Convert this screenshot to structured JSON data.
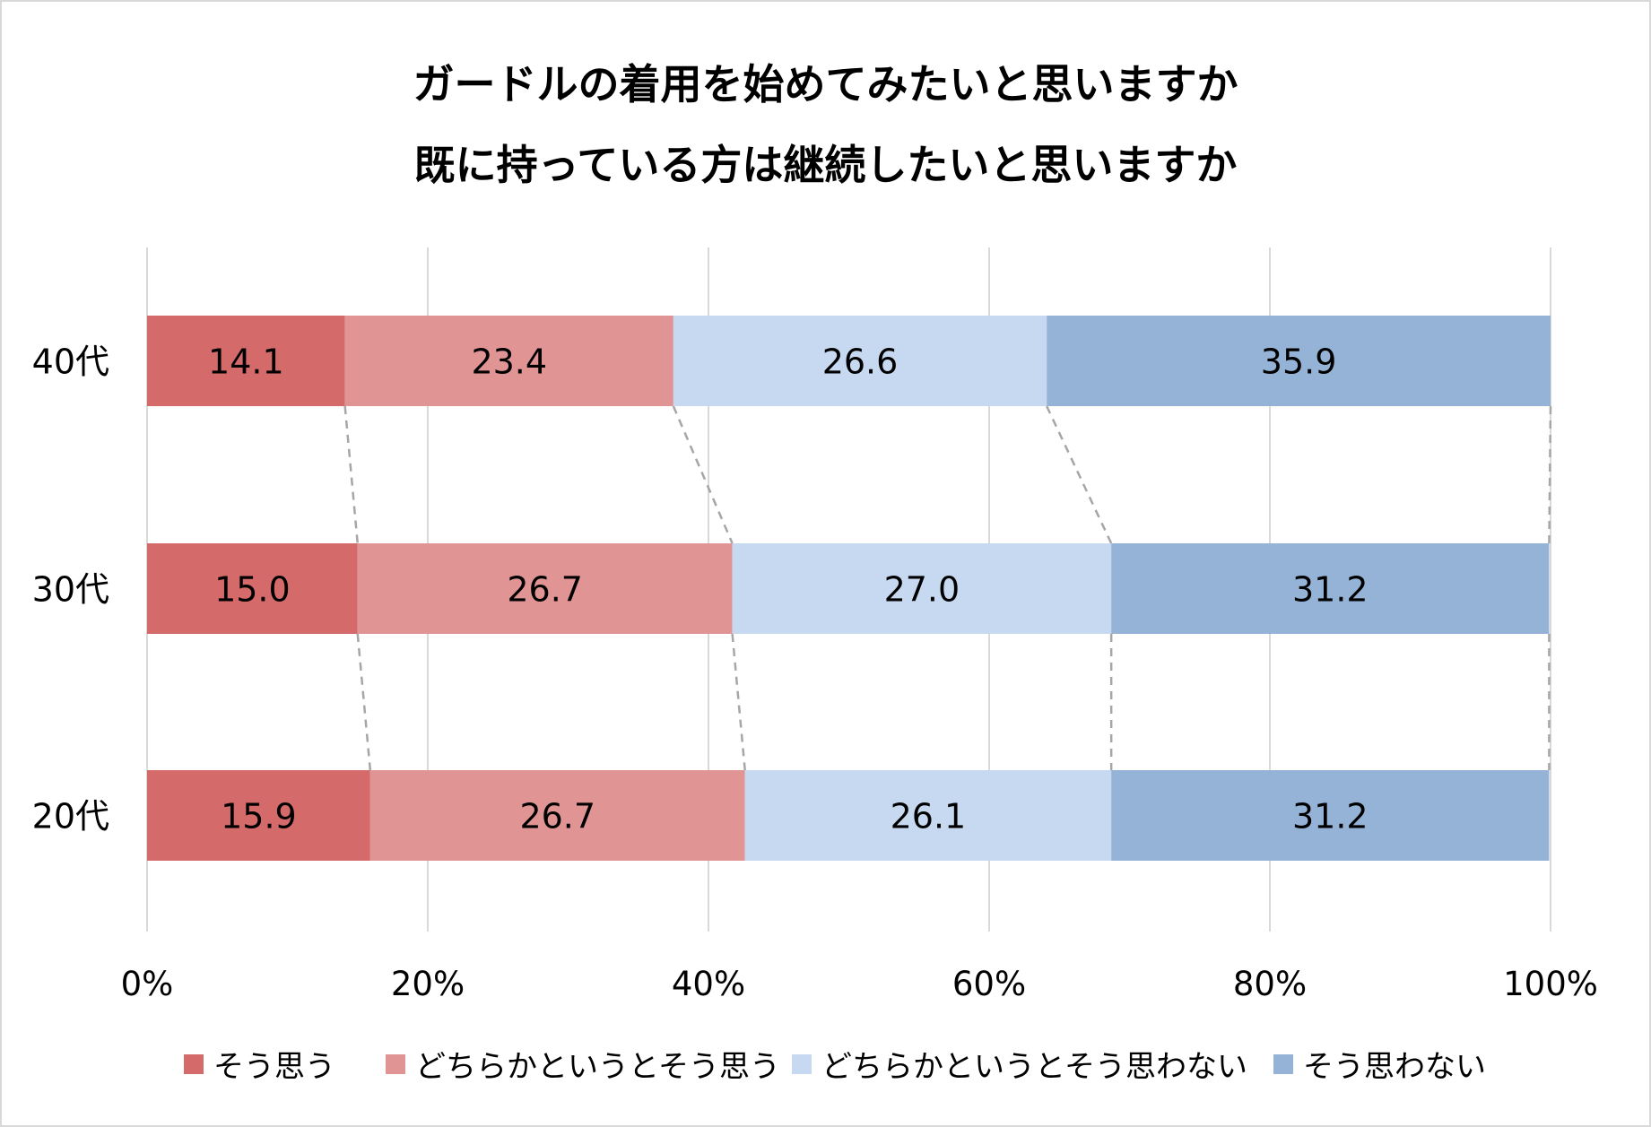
{
  "chart_data": {
    "type": "bar",
    "orientation": "horizontal",
    "stacked": "percent",
    "title_lines": [
      "ガードルの着用を始めてみたいと思いますか",
      "既に持っている方は継続したいと思いますか"
    ],
    "categories": [
      "40代",
      "30代",
      "20代"
    ],
    "series": [
      {
        "name": "そう思う",
        "color": "#D46A6A",
        "values": [
          14.1,
          15.0,
          15.9
        ]
      },
      {
        "name": "どちらかというとそう思う",
        "color": "#E09494",
        "values": [
          23.4,
          26.7,
          26.7
        ]
      },
      {
        "name": "どちらかというとそう思わない",
        "color": "#C6D9F1",
        "values": [
          26.6,
          27.0,
          26.1
        ]
      },
      {
        "name": "そう思わない",
        "color": "#95B3D7",
        "values": [
          35.9,
          31.2,
          31.2
        ]
      }
    ],
    "x_ticks": [
      "0%",
      "20%",
      "40%",
      "60%",
      "80%",
      "100%"
    ],
    "xlim": [
      0,
      100
    ],
    "grid": true,
    "series_lines": true,
    "legend_position": "bottom"
  }
}
